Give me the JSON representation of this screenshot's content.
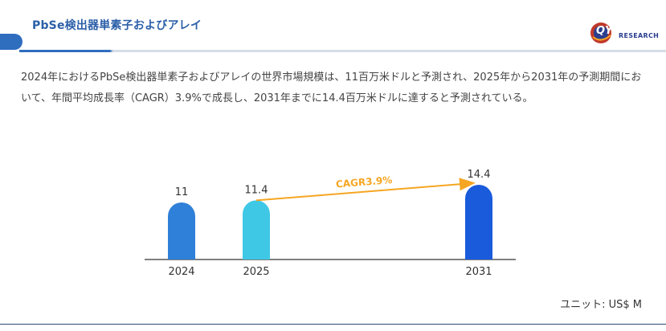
{
  "header": {
    "title": "PbSe検出器単素子およびアレイ",
    "logo_text": "RESEARCH",
    "logo_mark": "QY"
  },
  "summary": "2024年におけるPbSe検出器単素子およびアレイの世界市場規模は、11百万米ドルと予測され、2025年から2031年の予測期間において、年間平均成長率（CAGR）3.9%で成長し、2031年までに14.4百万米ドルに達すると予測されている。",
  "unit_label": "ユニット: US$ M",
  "colors": {
    "accent": "#2f6dbf",
    "arrow": "#f5a623",
    "bars": [
      "#2f80d8",
      "#3ec8e6",
      "#1a5bdc"
    ]
  },
  "chart_data": {
    "type": "bar",
    "categories": [
      "2024",
      "2025",
      "2031"
    ],
    "values": [
      11,
      11.4,
      14.4
    ],
    "value_labels": [
      "11",
      "11.4",
      "14.4"
    ],
    "annotation": {
      "text": "CAGR3.9%",
      "from": "2025",
      "to": "2031"
    },
    "title": "",
    "xlabel": "",
    "ylabel": ""
  }
}
